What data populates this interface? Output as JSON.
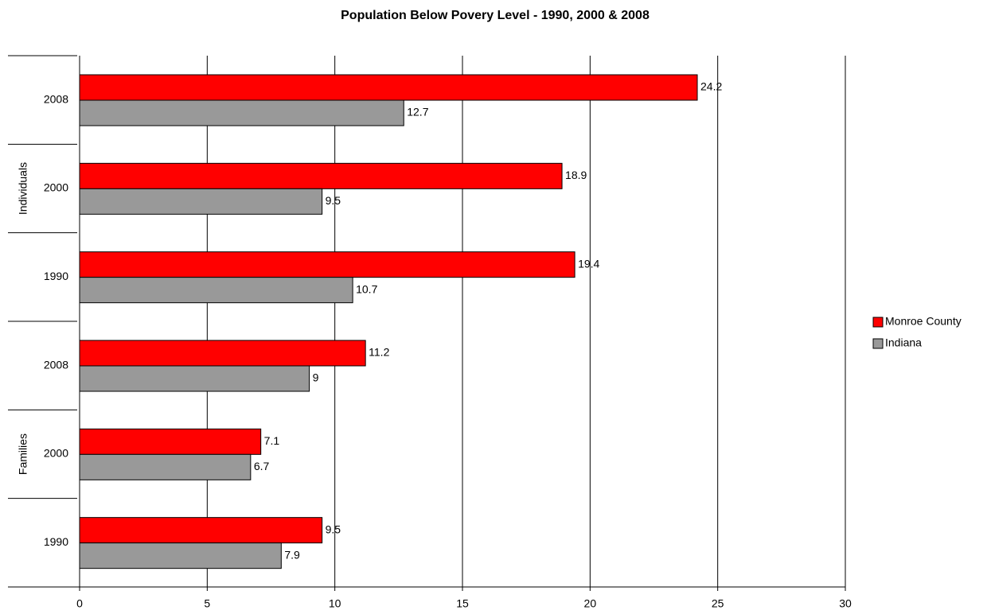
{
  "chart_data": {
    "type": "bar",
    "orientation": "horizontal",
    "title": "Population Below Povery Level - 1990, 2000 & 2008",
    "groups": [
      {
        "name": "Individuals",
        "categories": [
          "2008",
          "2000",
          "1990"
        ]
      },
      {
        "name": "Families",
        "categories": [
          "2008",
          "2000",
          "1990"
        ]
      }
    ],
    "series": [
      {
        "name": "Monroe County",
        "color": "#ff0000",
        "values": [
          24.2,
          18.9,
          19.4,
          11.2,
          7.1,
          9.5
        ]
      },
      {
        "name": "Indiana",
        "color": "#999999",
        "values": [
          12.7,
          9.5,
          10.7,
          9,
          6.7,
          7.9
        ]
      }
    ],
    "xlim": [
      0,
      30
    ],
    "xticks": [
      0,
      5,
      10,
      15,
      20,
      25,
      30
    ],
    "grid": true,
    "legend": "right"
  }
}
